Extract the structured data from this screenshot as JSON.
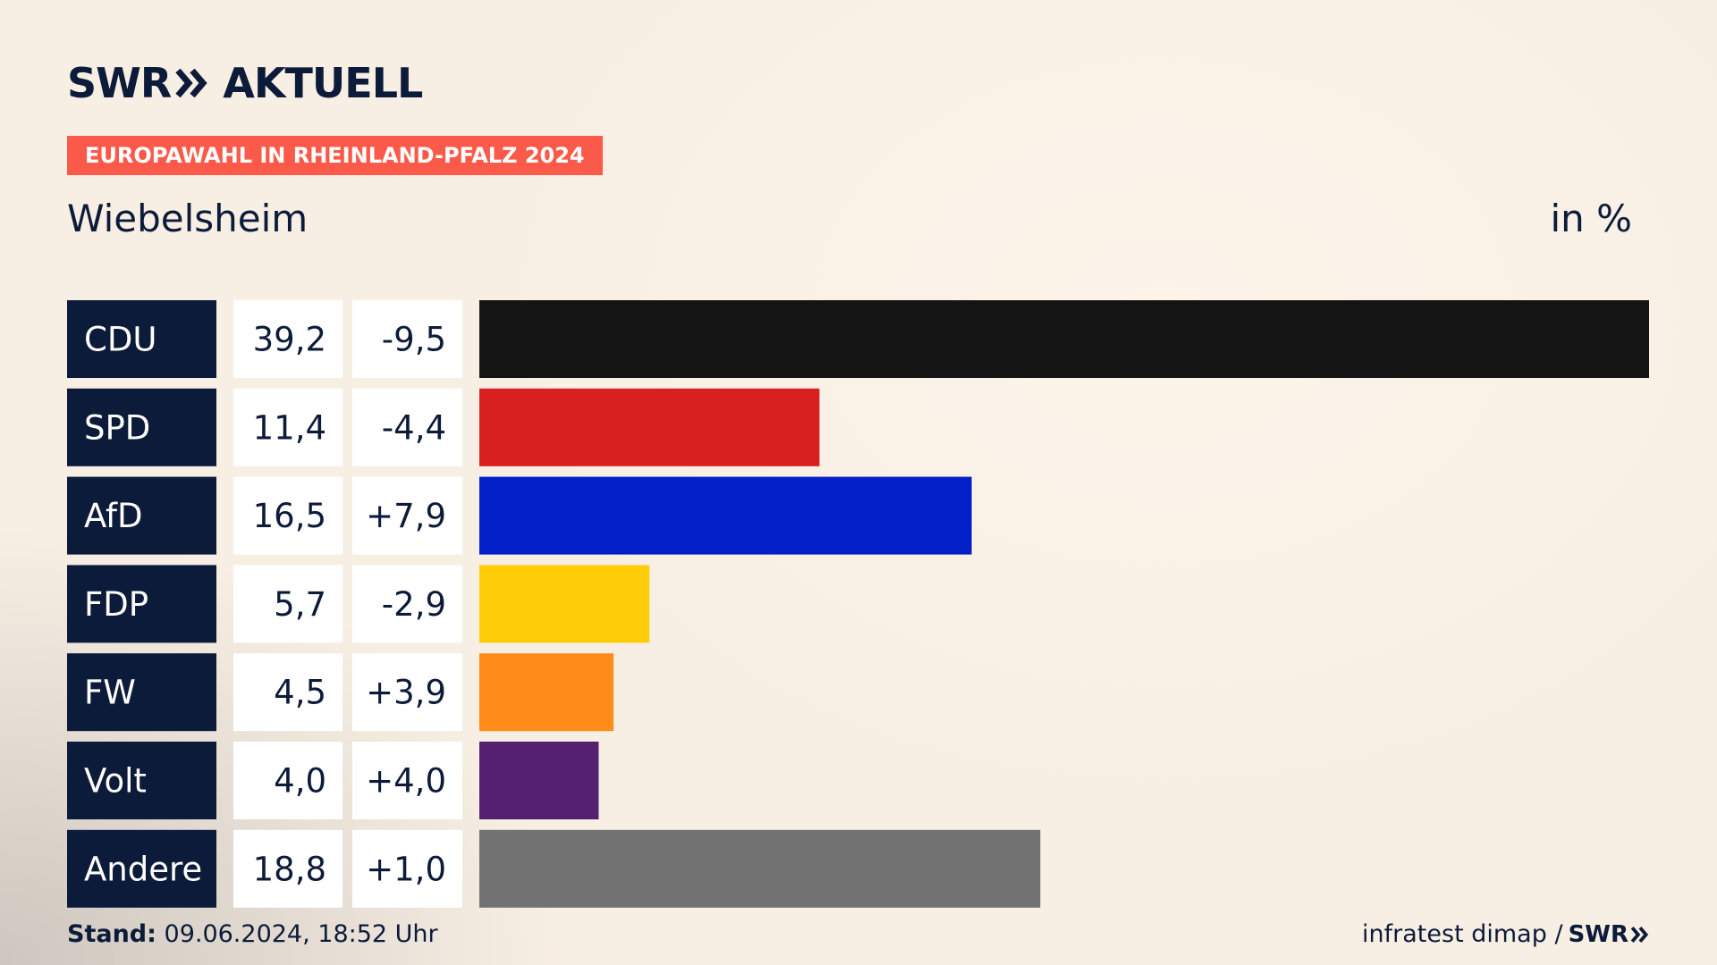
{
  "header": {
    "logo_text": "SWR",
    "logo_suffix": "AKTUELL",
    "logo_icon": "double-chevron-icon",
    "badge": "EUROPAWAHL IN RHEINLAND-PFALZ 2024",
    "place": "Wiebelsheim",
    "unit": "in %"
  },
  "footer": {
    "stand_label": "Stand:",
    "stand_value": "09.06.2024, 18:52 Uhr",
    "source": "infratest dimap /",
    "source_brand": "SWR"
  },
  "colors": {
    "label_bg": "#0d1b3a",
    "badge_bg": "#fb5a4a",
    "value_bg": "#ffffff"
  },
  "chart_data": {
    "type": "bar",
    "orientation": "horizontal",
    "categories": [
      "CDU",
      "SPD",
      "AfD",
      "FDP",
      "FW",
      "Volt",
      "Andere"
    ],
    "values": [
      39.2,
      11.4,
      16.5,
      5.7,
      4.5,
      4.0,
      18.8
    ],
    "value_labels": [
      "39,2",
      "11,4",
      "16,5",
      "5,7",
      "4,5",
      "4,0",
      "18,8"
    ],
    "changes": [
      -9.5,
      -4.4,
      7.9,
      -2.9,
      3.9,
      4.0,
      1.0
    ],
    "change_labels": [
      "-9,5",
      "-4,4",
      "+7,9",
      "-2,9",
      "+3,9",
      "+4,0",
      "+1,0"
    ],
    "colors": [
      "#141414",
      "#d82020",
      "#0320c8",
      "#ffcc0a",
      "#ff8c1a",
      "#52206e",
      "#727272"
    ],
    "xlim": [
      0,
      39.2
    ],
    "grid": false
  }
}
